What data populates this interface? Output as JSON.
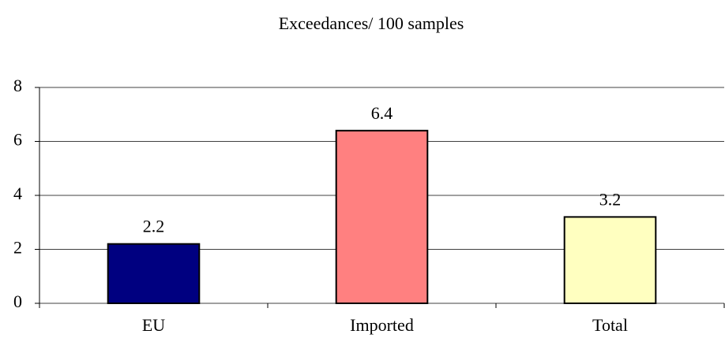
{
  "chart_data": {
    "type": "bar",
    "title": "Exceedances/ 100 samples",
    "categories": [
      "EU",
      "Imported",
      "Total"
    ],
    "values": [
      2.2,
      6.4,
      3.2
    ],
    "colors": [
      "#000080",
      "#ff8080",
      "#ffffc0"
    ],
    "ylim": [
      0,
      8
    ],
    "yticks": [
      0,
      2,
      4,
      6,
      8
    ],
    "grid": true
  }
}
